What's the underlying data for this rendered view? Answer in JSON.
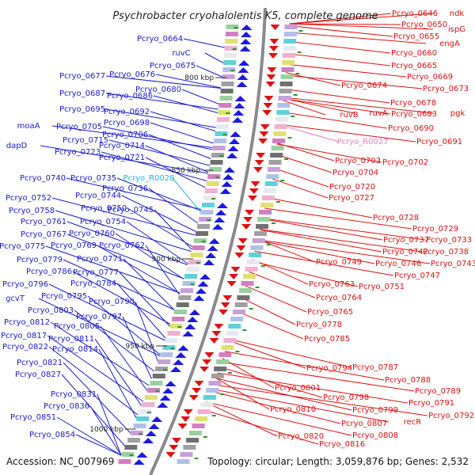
{
  "title": "Psychrobacter cryohalolentis K5, complete genome",
  "footer": {
    "accession": "Accession: NC_007969",
    "topology": "Topology: circular; Length: 3,059,876 bp; Genes: 2,532"
  },
  "colors": {
    "left_genes": "#1a1acc",
    "right_genes": "#dd1111",
    "rna_left": "#22b0e0",
    "rna_right": "#f07cbc",
    "backbone": "#888888"
  },
  "kbp_ticks": [
    {
      "label": "800 kbp"
    },
    {
      "label": "850 kbp"
    },
    {
      "label": "900 kbp"
    },
    {
      "label": "950 kbp"
    },
    {
      "label": "1000 kbp"
    }
  ],
  "left_labels": [
    {
      "text": "Pcryo_0664",
      "kind": "gene"
    },
    {
      "text": "ruvC",
      "kind": "gene"
    },
    {
      "text": "Pcryo_0675",
      "kind": "gene"
    },
    {
      "text": "Pcryo_0677",
      "kind": "gene"
    },
    {
      "text": "Pcryo_0676",
      "kind": "gene"
    },
    {
      "text": "Pcryo_0680",
      "kind": "gene"
    },
    {
      "text": "Pcryo_0687",
      "kind": "gene"
    },
    {
      "text": "Pcryo_0686",
      "kind": "gene"
    },
    {
      "text": "Pcryo_0695",
      "kind": "gene"
    },
    {
      "text": "Pcryo_0692",
      "kind": "gene"
    },
    {
      "text": "Pcryo_0698",
      "kind": "gene"
    },
    {
      "text": "moaA",
      "kind": "gene"
    },
    {
      "text": "Pcryo_0705",
      "kind": "gene"
    },
    {
      "text": "Pcryo_0706",
      "kind": "gene"
    },
    {
      "text": "Pcryo_0715",
      "kind": "gene"
    },
    {
      "text": "Pcryo_0714",
      "kind": "gene"
    },
    {
      "text": "dapD",
      "kind": "gene"
    },
    {
      "text": "Pcryo_0723",
      "kind": "gene"
    },
    {
      "text": "Pcryo_0721",
      "kind": "gene"
    },
    {
      "text": "Pcryo_0740",
      "kind": "gene"
    },
    {
      "text": "Pcryo_0735",
      "kind": "gene"
    },
    {
      "text": "Pcryo_R0028",
      "kind": "rna"
    },
    {
      "text": "Pcryo_0736",
      "kind": "gene"
    },
    {
      "text": "Pcryo_0744",
      "kind": "gene"
    },
    {
      "text": "Pcryo_0752",
      "kind": "gene"
    },
    {
      "text": "Pcryo_0750",
      "kind": "gene"
    },
    {
      "text": "Pcryo_0745",
      "kind": "gene"
    },
    {
      "text": "Pcryo_0758",
      "kind": "gene"
    },
    {
      "text": "Pcryo_0754",
      "kind": "gene"
    },
    {
      "text": "Pcryo_0761",
      "kind": "gene"
    },
    {
      "text": "Pcryo_0767",
      "kind": "gene"
    },
    {
      "text": "Pcryo_0760",
      "kind": "gene"
    },
    {
      "text": "Pcryo_0775",
      "kind": "gene"
    },
    {
      "text": "Pcryo_0769",
      "kind": "gene"
    },
    {
      "text": "Pcryo_0762",
      "kind": "gene"
    },
    {
      "text": "Pcryo_0779",
      "kind": "gene"
    },
    {
      "text": "Pcryo_0771",
      "kind": "gene"
    },
    {
      "text": "Pcryo_0786",
      "kind": "gene"
    },
    {
      "text": "Pcryo_0777",
      "kind": "gene"
    },
    {
      "text": "Pcryo_0784",
      "kind": "gene"
    },
    {
      "text": "Pcryo_0796",
      "kind": "gene"
    },
    {
      "text": "gcvT",
      "kind": "gene"
    },
    {
      "text": "Pcryo_0795",
      "kind": "gene"
    },
    {
      "text": "Pcryo_0790",
      "kind": "gene"
    },
    {
      "text": "Pcryo_0803",
      "kind": "gene"
    },
    {
      "text": "Pcryo_0797",
      "kind": "gene"
    },
    {
      "text": "Pcryo_0812",
      "kind": "gene"
    },
    {
      "text": "Pcryo_0805",
      "kind": "gene"
    },
    {
      "text": "Pcryo_0817",
      "kind": "gene"
    },
    {
      "text": "Pcryo_0811",
      "kind": "gene"
    },
    {
      "text": "Pcryo_0822",
      "kind": "gene"
    },
    {
      "text": "Pcryo_0814",
      "kind": "gene"
    },
    {
      "text": "Pcryo_0821",
      "kind": "gene"
    },
    {
      "text": "Pcryo_0827",
      "kind": "gene"
    },
    {
      "text": "Pcryo_0831",
      "kind": "gene"
    },
    {
      "text": "Pcryo_0836",
      "kind": "gene"
    },
    {
      "text": "Pcryo_0851",
      "kind": "gene"
    },
    {
      "text": "Pcryo_0854",
      "kind": "gene"
    }
  ],
  "right_labels": [
    {
      "text": "Pcryo_0646",
      "kind": "gene"
    },
    {
      "text": "ndk",
      "kind": "gene"
    },
    {
      "text": "Pcryo_0650",
      "kind": "gene"
    },
    {
      "text": "ispG",
      "kind": "gene"
    },
    {
      "text": "Pcryo_0655",
      "kind": "gene"
    },
    {
      "text": "engA",
      "kind": "gene"
    },
    {
      "text": "Pcryo_0660",
      "kind": "gene"
    },
    {
      "text": "Pcryo_0665",
      "kind": "gene"
    },
    {
      "text": "Pcryo_0669",
      "kind": "gene"
    },
    {
      "text": "Pcryo_0674",
      "kind": "gene"
    },
    {
      "text": "Pcryo_0673",
      "kind": "gene"
    },
    {
      "text": "Pcryo_0678",
      "kind": "gene"
    },
    {
      "text": "ruvB",
      "kind": "gene"
    },
    {
      "text": "ruvA",
      "kind": "gene"
    },
    {
      "text": "Pcryo_0683",
      "kind": "gene"
    },
    {
      "text": "pgk",
      "kind": "gene"
    },
    {
      "text": "Pcryo_0690",
      "kind": "gene"
    },
    {
      "text": "Pcryo_R0027",
      "kind": "rna"
    },
    {
      "text": "Pcryo_0691",
      "kind": "gene"
    },
    {
      "text": "Pcryo_0703",
      "kind": "gene"
    },
    {
      "text": "Pcryo_0702",
      "kind": "gene"
    },
    {
      "text": "Pcryo_0704",
      "kind": "gene"
    },
    {
      "text": "Pcryo_0720",
      "kind": "gene"
    },
    {
      "text": "Pcryo_0727",
      "kind": "gene"
    },
    {
      "text": "Pcryo_0728",
      "kind": "gene"
    },
    {
      "text": "Pcryo_0729",
      "kind": "gene"
    },
    {
      "text": "Pcryo_0737",
      "kind": "gene"
    },
    {
      "text": "Pcryo_0733",
      "kind": "gene"
    },
    {
      "text": "Pcryo_0742",
      "kind": "gene"
    },
    {
      "text": "Pcryo_0738",
      "kind": "gene"
    },
    {
      "text": "Pcryo_0749",
      "kind": "gene"
    },
    {
      "text": "Pcryo_0746",
      "kind": "gene"
    },
    {
      "text": "Pcryo_0743",
      "kind": "gene"
    },
    {
      "text": "Pcryo_0747",
      "kind": "gene"
    },
    {
      "text": "Pcryo_0763",
      "kind": "gene"
    },
    {
      "text": "Pcryo_0751",
      "kind": "gene"
    },
    {
      "text": "Pcryo_0764",
      "kind": "gene"
    },
    {
      "text": "Pcryo_0765",
      "kind": "gene"
    },
    {
      "text": "Pcryo_0778",
      "kind": "gene"
    },
    {
      "text": "Pcryo_0785",
      "kind": "gene"
    },
    {
      "text": "Pcryo_0794",
      "kind": "gene"
    },
    {
      "text": "Pcryo_0787",
      "kind": "gene"
    },
    {
      "text": "Pcryo_0788",
      "kind": "gene"
    },
    {
      "text": "Pcryo_0789",
      "kind": "gene"
    },
    {
      "text": "Pcryo_0801",
      "kind": "gene"
    },
    {
      "text": "Pcryo_0791",
      "kind": "gene"
    },
    {
      "text": "Pcryo_0798",
      "kind": "gene"
    },
    {
      "text": "Pcryo_0792",
      "kind": "gene"
    },
    {
      "text": "Pcryo_0810",
      "kind": "gene"
    },
    {
      "text": "Pcryo_0799",
      "kind": "gene"
    },
    {
      "text": "Pcryo_0807",
      "kind": "gene"
    },
    {
      "text": "recR",
      "kind": "gene"
    },
    {
      "text": "Pcryo_0808",
      "kind": "gene"
    },
    {
      "text": "Pcryo_0820",
      "kind": "gene"
    },
    {
      "text": "Pcryo_0816",
      "kind": "gene"
    }
  ]
}
